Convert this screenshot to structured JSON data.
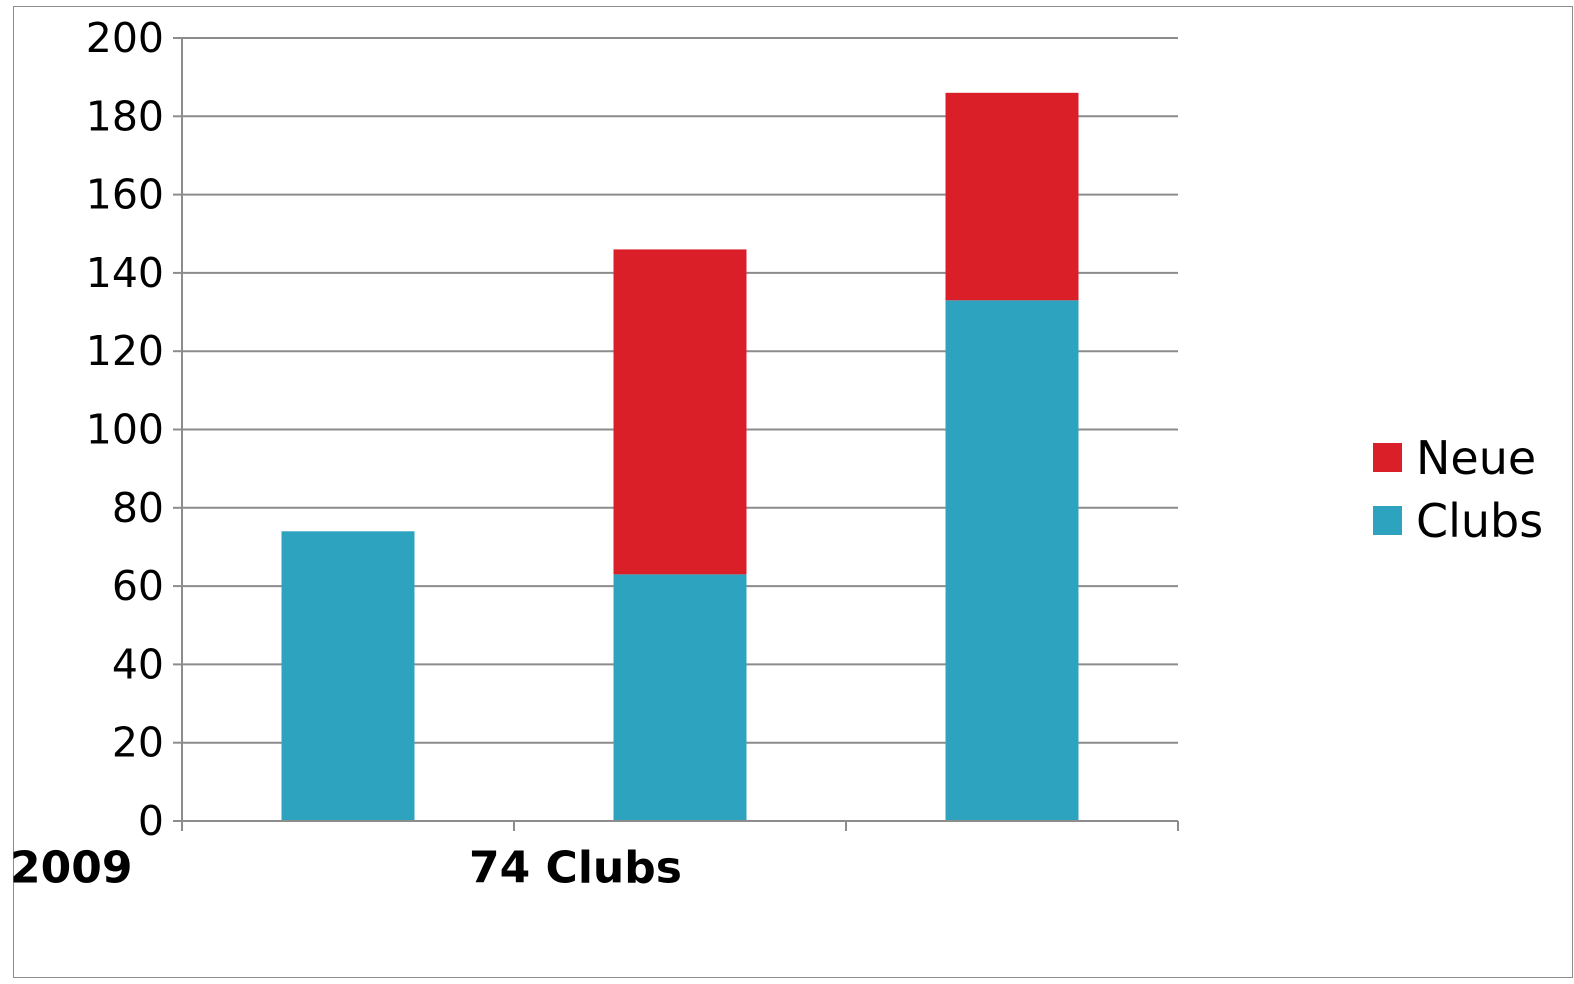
{
  "chart_data": {
    "type": "bar",
    "stacked": true,
    "title": "",
    "xlabel": "",
    "ylabel": "",
    "ylim": [
      0,
      200
    ],
    "y_ticks": [
      0,
      20,
      40,
      60,
      80,
      100,
      120,
      140,
      160,
      180,
      200
    ],
    "grid": true,
    "legend_position": "right",
    "categories": [
      "2009",
      "74 Clubs",
      ""
    ],
    "series": [
      {
        "name": "Clubs",
        "color": "#2EA3BF",
        "values": [
          74,
          63,
          133
        ]
      },
      {
        "name": "Neue",
        "color": "#DA1F28",
        "values": [
          0,
          83,
          53
        ]
      }
    ]
  }
}
